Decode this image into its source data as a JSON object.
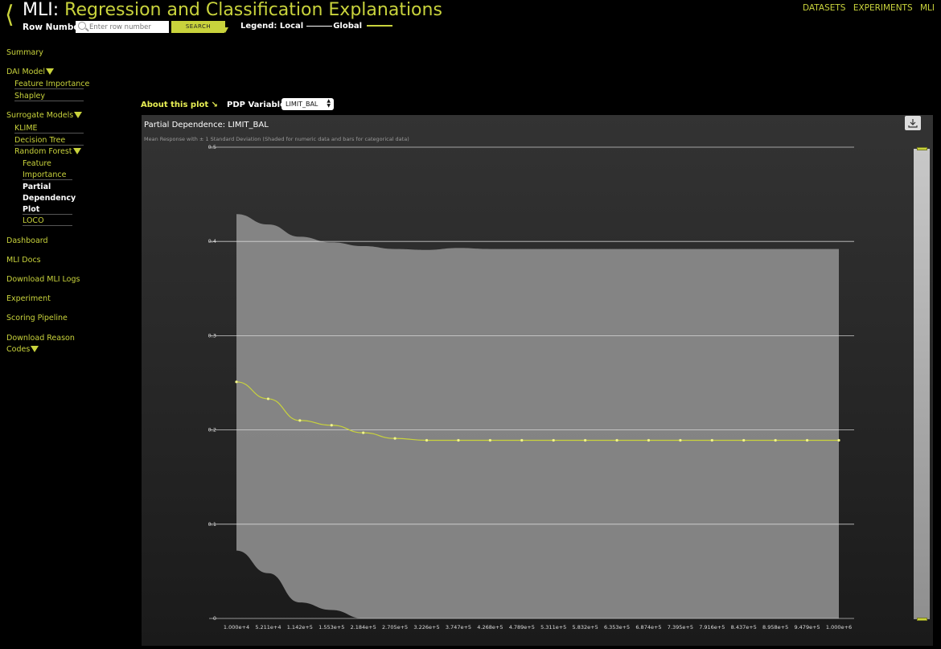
{
  "header": {
    "title_prefix": "MLI:",
    "title_name": "Regression and Classification Explanations",
    "row_number_label": "Row Number:",
    "row_number_placeholder": "Enter row number",
    "search_label": "SEARCH",
    "legend_label": "Legend: Local",
    "legend_global": "Global"
  },
  "topnav": [
    "DATASETS",
    "EXPERIMENTS",
    "MLI"
  ],
  "sidebar": {
    "summary": "Summary",
    "dai_model": "DAI Model",
    "feature_importance": "Feature Importance",
    "shapley": "Shapley",
    "surrogate_models": "Surrogate Models",
    "klime": "KLIME",
    "decision_tree": "Decision Tree",
    "random_forest": "Random Forest",
    "rf_feature": "Feature",
    "rf_importance": "Importance",
    "rf_partial": "Partial",
    "rf_dependency": "Dependency",
    "rf_plot": "Plot",
    "loco": "LOCO",
    "dashboard": "Dashboard",
    "mli_docs": "MLI Docs",
    "download_logs": "Download MLI Logs",
    "experiment": "Experiment",
    "scoring_pipeline": "Scoring Pipeline",
    "download_reason_1": "Download Reason",
    "download_reason_2": "Codes"
  },
  "controls": {
    "about_link": "About this plot ↘",
    "pdp_label": "PDP Variable:",
    "pdp_value": "LIMIT_BAL"
  },
  "colors": {
    "accent": "#c9d33c",
    "background": "#000000",
    "band": "#8c8c8c"
  },
  "chart_data": {
    "type": "line",
    "title": "Partial Dependence: LIMIT_BAL",
    "subtitle": "Mean Response with ± 1 Standard Deviation (Shaded for numeric data and bars for categorical data)",
    "x": [
      "1.000e+4",
      "5.211e+4",
      "1.142e+5",
      "1.553e+5",
      "2.184e+5",
      "2.705e+5",
      "3.226e+5",
      "3.747e+5",
      "4.268e+5",
      "4.789e+5",
      "5.311e+5",
      "5.832e+5",
      "6.353e+5",
      "6.874e+5",
      "7.395e+5",
      "7.916e+5",
      "8.437e+5",
      "8.958e+5",
      "9.479e+5",
      "1.000e+6"
    ],
    "series": [
      {
        "values": [
          0.251,
          0.233,
          0.21,
          0.205,
          0.197,
          0.191,
          0.189,
          0.189,
          0.189,
          0.189,
          0.189,
          0.189,
          0.189,
          0.189,
          0.189,
          0.189,
          0.189,
          0.189,
          0.189,
          0.189
        ]
      }
    ],
    "band_upper": [
      0.429,
      0.418,
      0.405,
      0.399,
      0.395,
      0.392,
      0.391,
      0.393,
      0.392,
      0.392,
      0.392,
      0.392,
      0.392,
      0.392,
      0.392,
      0.392,
      0.392,
      0.392,
      0.392,
      0.392
    ],
    "band_lower": [
      0.072,
      0.048,
      0.017,
      0.009,
      0.0,
      0.0,
      0.0,
      0.0,
      0.0,
      0.0,
      0.0,
      0.0,
      0.0,
      0.0,
      0.0,
      0.0,
      0.0,
      0.0,
      0.0,
      0.0
    ],
    "yticks": [
      "0",
      "0.1",
      "0.2",
      "0.3",
      "0.4",
      "0.5"
    ],
    "ylim": [
      0,
      0.5
    ],
    "grid": true
  }
}
